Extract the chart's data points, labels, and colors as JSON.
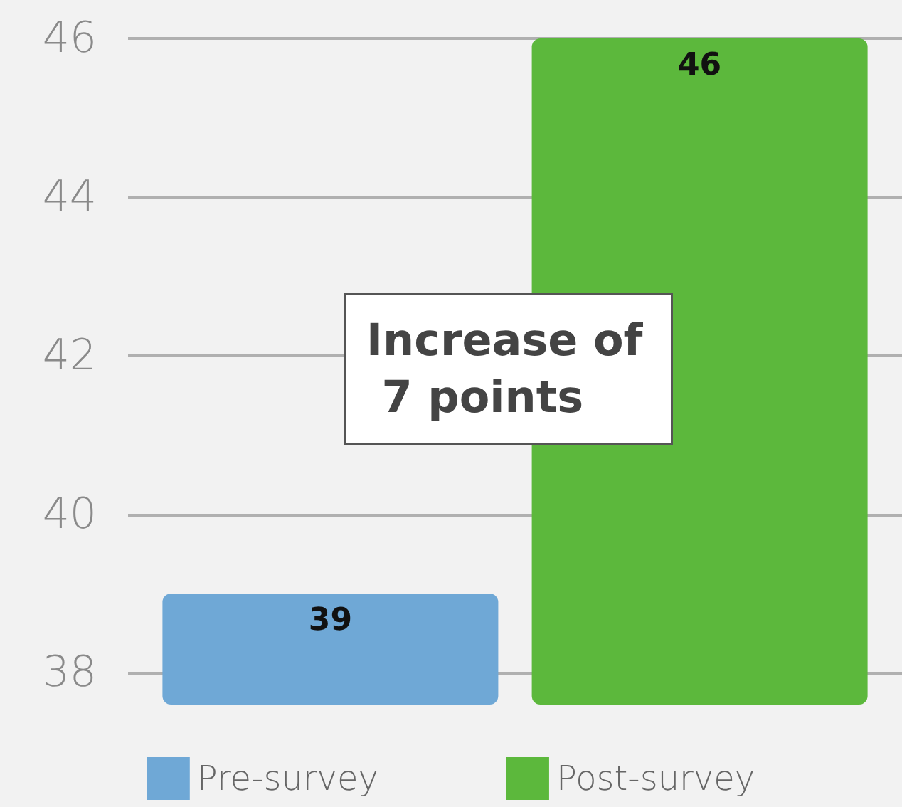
{
  "chart_data": {
    "type": "bar",
    "categories": [
      null
    ],
    "series": [
      {
        "name": "Pre-survey",
        "color": "#6fa8d6",
        "values": [
          39
        ]
      },
      {
        "name": "Post-survey",
        "color": "#5cb83c",
        "values": [
          46
        ]
      }
    ],
    "ylim": [
      37.6,
      46
    ],
    "yticks": [
      38,
      40,
      42,
      44,
      46
    ],
    "grid": "y",
    "legend": "bottom",
    "data_labels": true,
    "annotations": [
      "Increase of 7 points"
    ]
  }
}
